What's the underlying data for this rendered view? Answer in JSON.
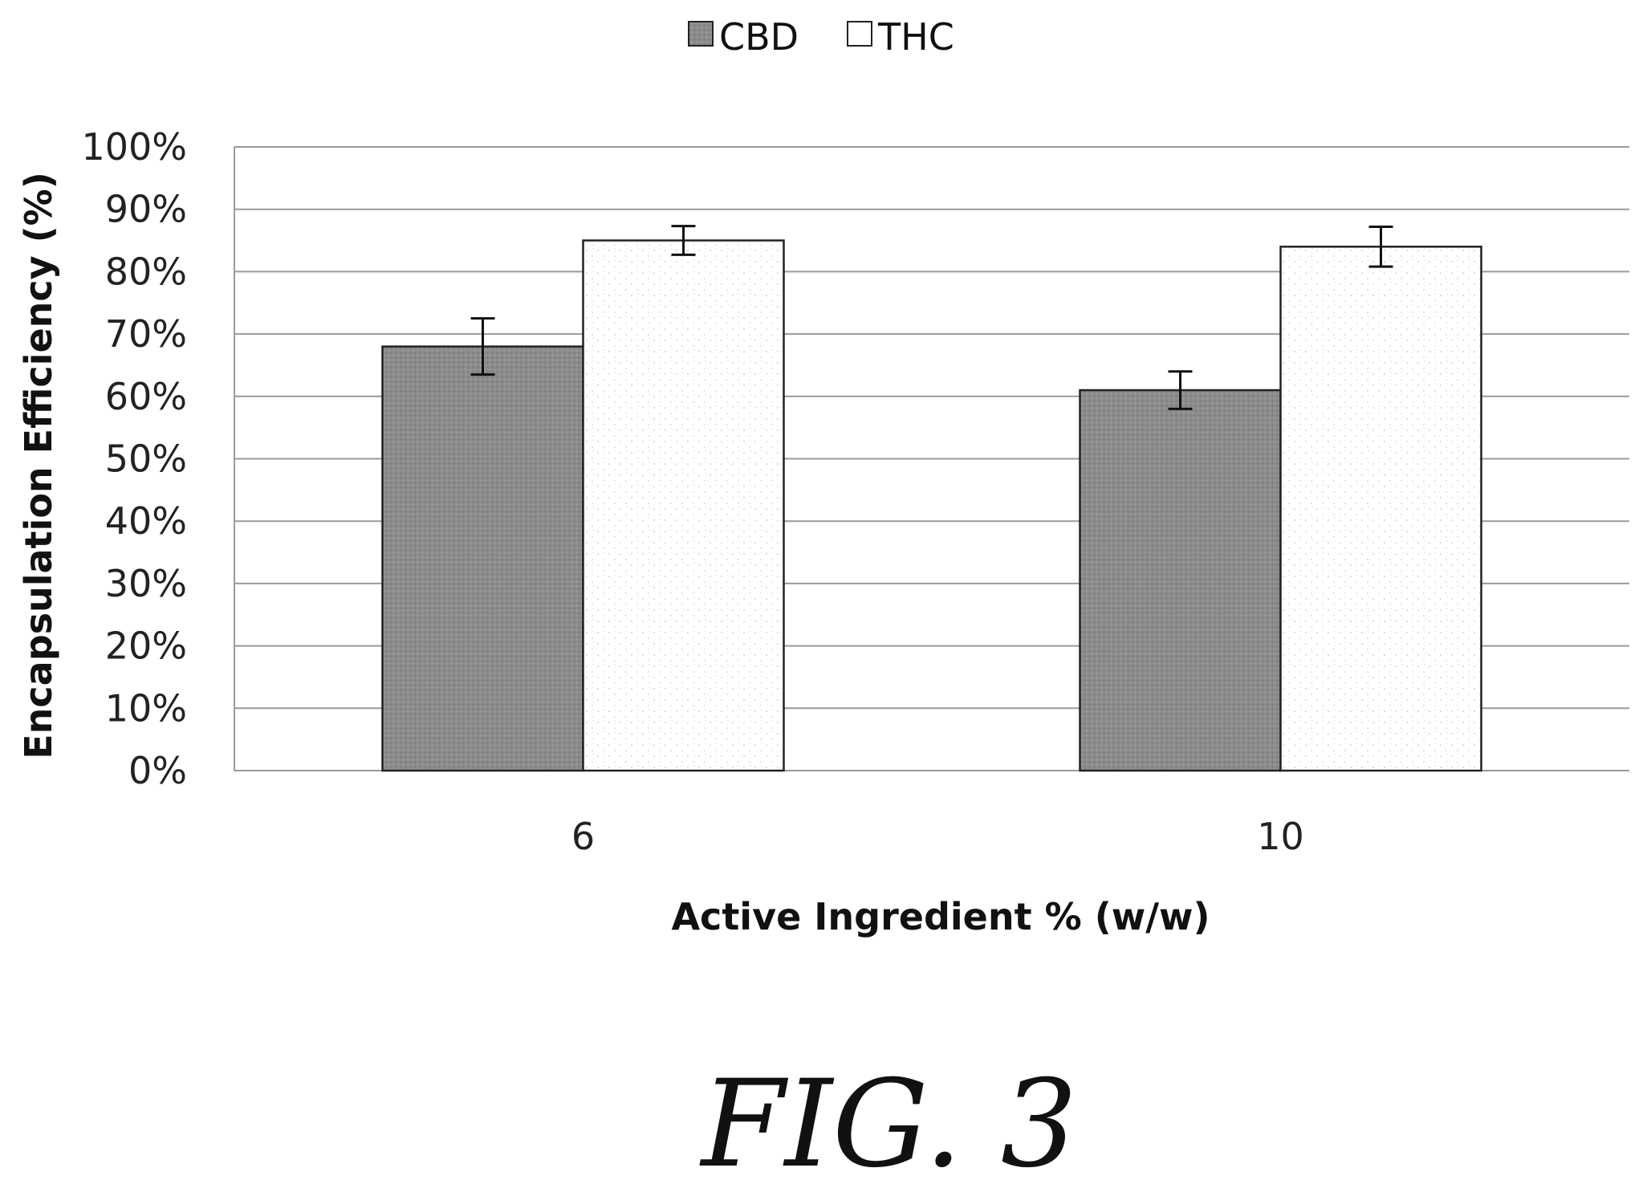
{
  "chart_data": {
    "type": "bar",
    "title": "",
    "xlabel": "Active Ingredient % (w/w)",
    "ylabel": "Encapsulation Efficiency (%)",
    "categories": [
      "6",
      "10"
    ],
    "series": [
      {
        "name": "CBD",
        "values": [
          68,
          61
        ],
        "errors": [
          4.5,
          3
        ],
        "color": "#8a8a8a"
      },
      {
        "name": "THC",
        "values": [
          85,
          84
        ],
        "errors": [
          2.3,
          3.2
        ],
        "color": "#ffffff"
      }
    ],
    "ylim": [
      0,
      100
    ],
    "yticks": [
      "0%",
      "10%",
      "20%",
      "30%",
      "40%",
      "50%",
      "60%",
      "70%",
      "80%",
      "90%",
      "100%"
    ],
    "grid": true,
    "legend_position": "top-center"
  },
  "figure_label": "FIG. 3"
}
